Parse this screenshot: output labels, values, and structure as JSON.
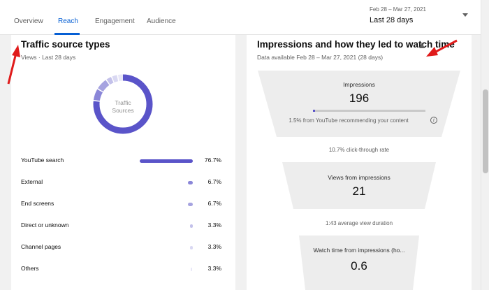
{
  "tabs": [
    {
      "label": "Overview"
    },
    {
      "label": "Reach"
    },
    {
      "label": "Engagement"
    },
    {
      "label": "Audience"
    }
  ],
  "date_range": {
    "dates": "Feb 28 – Mar 27, 2021",
    "label": "Last 28 days"
  },
  "traffic": {
    "title": "Traffic source types",
    "subtitle": "Views · Last 28 days",
    "donut_label_line1": "Traffic",
    "donut_label_line2": "Sources",
    "accent_color": "#5a54c9",
    "sources": [
      {
        "label": "YouTube search",
        "pct": "76.7%",
        "value": 76.7
      },
      {
        "label": "External",
        "pct": "6.7%",
        "value": 6.7
      },
      {
        "label": "End screens",
        "pct": "6.7%",
        "value": 6.7
      },
      {
        "label": "Direct or unknown",
        "pct": "3.3%",
        "value": 3.3
      },
      {
        "label": "Channel pages",
        "pct": "3.3%",
        "value": 3.3
      },
      {
        "label": "Others",
        "pct": "3.3%",
        "value": 3.3
      }
    ]
  },
  "impressions": {
    "title": "Impressions and how they led to watch time",
    "subtitle": "Data available Feb 28 – Mar 27, 2021 (28 days)",
    "impressions_label": "Impressions",
    "impressions_value": "196",
    "yt_recommend_text": "1.5% from YouTube recommending your content",
    "yt_recommend_value": 1.5,
    "ctr_text": "10.7% click-through rate",
    "views_label": "Views from impressions",
    "views_value": "21",
    "avg_duration_text": "1:43 average view duration",
    "watch_label": "Watch time from impressions (ho...",
    "watch_value": "0.6"
  }
}
